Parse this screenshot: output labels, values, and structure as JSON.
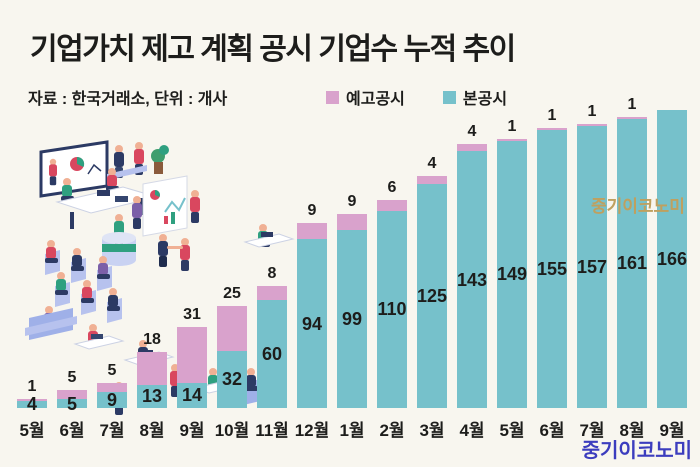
{
  "header": {
    "title": "기업가치 제고 계획 공시 기업수 누적 추이",
    "source_note": "자료 : 한국거래소, 단위 : 개사"
  },
  "legend": {
    "items": [
      {
        "label": "예고공시",
        "color": "#d9a2cc"
      },
      {
        "label": "본공시",
        "color": "#76c1cb"
      }
    ]
  },
  "watermarks": {
    "side": "중기이코노미",
    "side_color": "#bfa05f",
    "footer": "중기이코노미",
    "footer_color": "#3c3dbe"
  },
  "colors": {
    "background": "#f8f6ef",
    "text": "#1d1d1b",
    "bar_main": "#76c1cb",
    "bar_pre": "#d9a2cc"
  },
  "chart_data": {
    "type": "bar",
    "stacked": true,
    "title": "기업가치 제고 계획 공시 기업수 누적 추이",
    "source": "한국거래소",
    "unit": "개사",
    "legend_position": "top",
    "grid": false,
    "value_labels": "main counts inside bars, pre-announcement counts above bars",
    "ylim": [
      0,
      166
    ],
    "categories": [
      "5월",
      "6월",
      "7월",
      "8월",
      "9월",
      "10월",
      "11월",
      "12월",
      "1월",
      "2월",
      "3월",
      "4월",
      "5월",
      "6월",
      "7월",
      "8월",
      "9월"
    ],
    "series": [
      {
        "name": "본공시",
        "color": "#76c1cb",
        "values": [
          4,
          5,
          9,
          13,
          14,
          32,
          60,
          94,
          99,
          110,
          125,
          143,
          149,
          155,
          157,
          161,
          166
        ]
      },
      {
        "name": "예고공시",
        "color": "#d9a2cc",
        "values": [
          1,
          5,
          5,
          18,
          31,
          25,
          8,
          9,
          9,
          6,
          4,
          4,
          1,
          1,
          1,
          1,
          0
        ]
      }
    ]
  }
}
